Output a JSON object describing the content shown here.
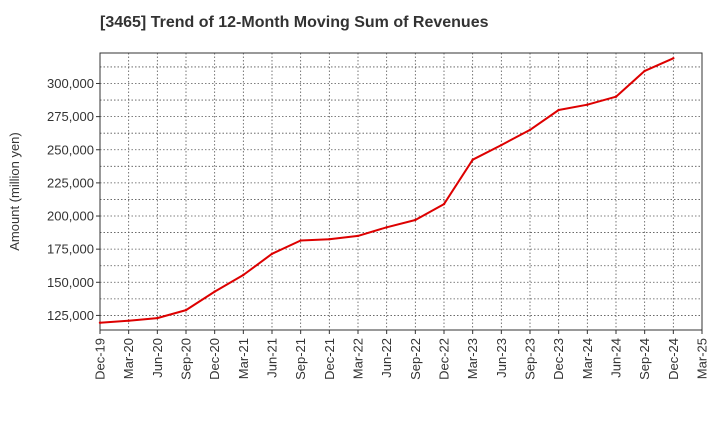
{
  "chart_data": {
    "type": "line",
    "title": "[3465]  Trend of 12-Month Moving Sum of Revenues",
    "xlabel": "",
    "ylabel": "Amount (million yen)",
    "x": [
      "Dec-19",
      "Mar-20",
      "Jun-20",
      "Sep-20",
      "Dec-20",
      "Mar-21",
      "Jun-21",
      "Sep-21",
      "Dec-21",
      "Mar-22",
      "Jun-22",
      "Sep-22",
      "Dec-22",
      "Mar-23",
      "Jun-23",
      "Sep-23",
      "Dec-23",
      "Mar-24",
      "Jun-24",
      "Sep-24",
      "Dec-24",
      "Mar-25"
    ],
    "series": [
      {
        "name": "",
        "color": "#dd0000",
        "values": [
          119500,
          121000,
          123000,
          129000,
          143000,
          155500,
          171500,
          181500,
          182500,
          185000,
          191500,
          197000,
          209000,
          242500,
          253500,
          265000,
          280000,
          284000,
          290000,
          309500,
          319000,
          null
        ]
      }
    ],
    "ylim": [
      114000,
      323000
    ],
    "yticks": [
      125000,
      150000,
      175000,
      200000,
      225000,
      250000,
      275000,
      300000
    ],
    "ytick_labels": [
      "125,000",
      "150,000",
      "175,000",
      "200,000",
      "225,000",
      "250,000",
      "275,000",
      "300,000"
    ],
    "grid": true,
    "grid_style": "dotted",
    "legend": "none"
  }
}
